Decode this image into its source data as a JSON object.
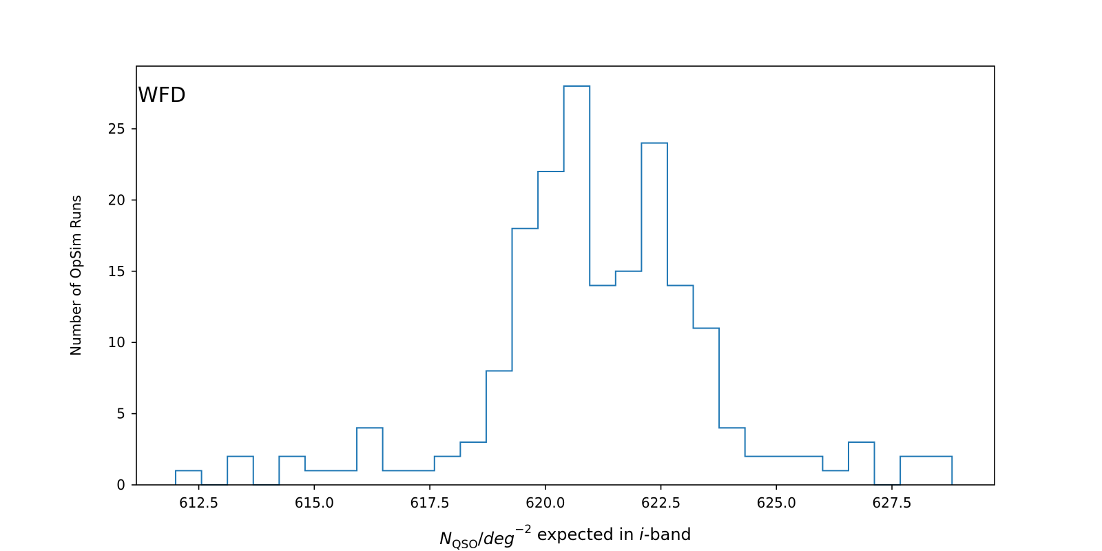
{
  "chart_data": {
    "type": "histogram",
    "annotation": "WFD",
    "xlabel": {
      "parts": [
        {
          "text": "N",
          "style": "italic"
        },
        {
          "text": "QSO",
          "style": "sub"
        },
        {
          "text": "/",
          "style": "normal"
        },
        {
          "text": "deg",
          "style": "italic"
        },
        {
          "text": "−2",
          "style": "sup"
        },
        {
          "text": " expected in ",
          "style": "normal"
        },
        {
          "text": "i",
          "style": "italic"
        },
        {
          "text": "-band",
          "style": "normal"
        }
      ]
    },
    "ylabel": "Number of OpSim Runs",
    "xlim": [
      611.15,
      629.72
    ],
    "ylim": [
      0,
      29.4
    ],
    "xticks": [
      612.5,
      615.0,
      617.5,
      620.0,
      622.5,
      625.0,
      627.5
    ],
    "xtick_labels": [
      "612.5",
      "615.0",
      "617.5",
      "620.0",
      "622.5",
      "625.0",
      "627.5"
    ],
    "yticks": [
      0,
      5,
      10,
      15,
      20,
      25
    ],
    "ytick_labels": [
      "0",
      "5",
      "10",
      "15",
      "20",
      "25"
    ],
    "bin_start": 612.0,
    "bin_width": 0.56,
    "counts": [
      1,
      0,
      2,
      0,
      2,
      1,
      1,
      4,
      1,
      1,
      2,
      3,
      8,
      18,
      22,
      28,
      14,
      15,
      24,
      14,
      11,
      4,
      2,
      2,
      2,
      1,
      3,
      0,
      2,
      2
    ],
    "line_color": "#1f77b4",
    "grid": false,
    "legend": "none"
  }
}
